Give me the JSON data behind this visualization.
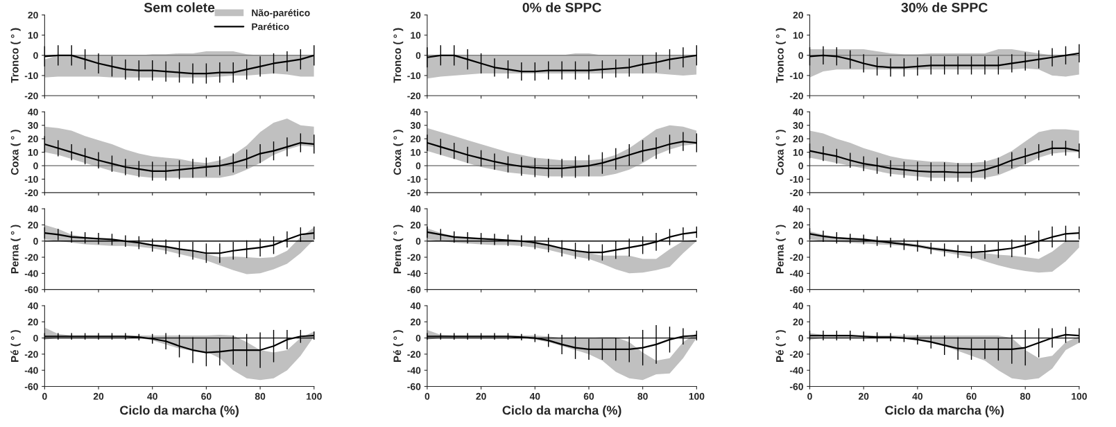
{
  "chart_data": [
    {
      "type": "line",
      "title": "Sem colete",
      "ylabel": "Tronco ( ° )",
      "x": [
        0,
        5,
        10,
        15,
        20,
        25,
        30,
        35,
        40,
        45,
        50,
        55,
        60,
        65,
        70,
        75,
        80,
        85,
        90,
        95,
        100
      ],
      "xlim": [
        0,
        100
      ],
      "xticks": [
        0,
        20,
        40,
        60,
        80,
        100
      ],
      "ylim": [
        -20,
        20
      ],
      "yticks": [
        -20,
        -10,
        0,
        10,
        20
      ],
      "tick_labels": "y",
      "legend": "top right",
      "ref_lines": [
        {
          "axis": "y",
          "value": 0,
          "color": "#808080"
        }
      ],
      "series": [
        {
          "name": "Não-parético",
          "type": "area",
          "color": "#c0c0c0",
          "values": [
            null,
            null,
            null,
            null,
            null,
            null,
            null,
            null,
            null,
            null,
            null,
            null,
            null,
            null,
            null,
            null,
            null,
            null,
            null,
            null,
            null
          ],
          "lower": [
            -11,
            -10.5,
            -10.5,
            -10.5,
            -10.5,
            -11,
            -11,
            -11,
            -11,
            -11,
            -11,
            -11,
            -11,
            -10.5,
            -10,
            -10,
            -9.5,
            -9,
            -9.5,
            -10.5,
            -10.5
          ],
          "upper": [
            -2,
            0,
            0,
            0,
            0,
            0,
            0,
            0,
            0.5,
            0.5,
            1,
            1,
            2,
            2,
            2,
            0.5,
            0,
            0,
            0,
            0,
            0
          ]
        },
        {
          "name": "Parético",
          "color": "#000000",
          "values": [
            -0.5,
            0,
            0,
            -2,
            -4,
            -5.5,
            -7,
            -7.5,
            -7.5,
            -8,
            -8.5,
            -9,
            -9,
            -8.5,
            -8.5,
            -7,
            -5.5,
            -4,
            -3,
            -2,
            0
          ],
          "errors": [
            5,
            5,
            5,
            5,
            5,
            5,
            5,
            5,
            5,
            5,
            5,
            5,
            5,
            5,
            5,
            5,
            5,
            5,
            5,
            5,
            5
          ]
        }
      ]
    },
    {
      "type": "line",
      "title": "0% de SPPC",
      "ylabel": "Tronco ( ° )",
      "x": [
        0,
        5,
        10,
        15,
        20,
        25,
        30,
        35,
        40,
        45,
        50,
        55,
        60,
        65,
        70,
        75,
        80,
        85,
        90,
        95,
        100
      ],
      "xlim": [
        0,
        100
      ],
      "xticks": [
        0,
        20,
        40,
        60,
        80,
        100
      ],
      "ylim": [
        -20,
        20
      ],
      "yticks": [
        -20,
        -10,
        0,
        10,
        20
      ],
      "tick_labels": "y",
      "ref_lines": [
        {
          "axis": "y",
          "value": 0,
          "color": "#808080"
        }
      ],
      "series": [
        {
          "type": "area",
          "color": "#c0c0c0",
          "values": [
            null,
            null,
            null,
            null,
            null,
            null,
            null,
            null,
            null,
            null,
            null,
            null,
            null,
            null,
            null,
            null,
            null,
            null,
            null,
            null,
            null
          ],
          "lower": [
            -11.5,
            -10.5,
            -10,
            -9.5,
            -9,
            -9,
            -9,
            -9,
            -9,
            -9,
            -9,
            -9,
            -9,
            -9,
            -9,
            -9,
            -9,
            -9,
            -9.5,
            -10,
            -9.5
          ],
          "upper": [
            0,
            0,
            0,
            0,
            0,
            0,
            0,
            0,
            0,
            0,
            0,
            1,
            1,
            0,
            0,
            0,
            0,
            0,
            0,
            0,
            0
          ]
        },
        {
          "color": "#000000",
          "values": [
            -1,
            0,
            0,
            -2,
            -4,
            -6,
            -7,
            -8,
            -8,
            -7.5,
            -7.5,
            -7.5,
            -7.5,
            -7,
            -6.5,
            -6,
            -4.5,
            -3.5,
            -2,
            -1,
            0
          ],
          "errors": [
            5,
            5,
            5,
            5,
            5,
            4.5,
            4.5,
            4.5,
            4.5,
            4.5,
            4.5,
            4.5,
            4.5,
            4.5,
            4.5,
            4.5,
            4.5,
            5,
            5,
            5,
            5
          ]
        }
      ]
    },
    {
      "type": "line",
      "title": "30% de SPPC",
      "ylabel": "Tronco ( ° )",
      "x": [
        0,
        5,
        10,
        15,
        20,
        25,
        30,
        35,
        40,
        45,
        50,
        55,
        60,
        65,
        70,
        75,
        80,
        85,
        90,
        95,
        100
      ],
      "xlim": [
        0,
        100
      ],
      "xticks": [
        0,
        20,
        40,
        60,
        80,
        100
      ],
      "ylim": [
        -20,
        20
      ],
      "yticks": [
        -20,
        -10,
        0,
        10,
        20
      ],
      "tick_labels": "y",
      "ref_lines": [
        {
          "axis": "y",
          "value": 0,
          "color": "#808080"
        }
      ],
      "series": [
        {
          "type": "area",
          "color": "#c0c0c0",
          "values": [
            null,
            null,
            null,
            null,
            null,
            null,
            null,
            null,
            null,
            null,
            null,
            null,
            null,
            null,
            null,
            null,
            null,
            null,
            null,
            null,
            null
          ],
          "lower": [
            -11,
            -8,
            -7,
            -7,
            -7,
            -7,
            -7,
            -7,
            -7,
            -7,
            -7,
            -7,
            -7,
            -7,
            -7,
            -7,
            -6.5,
            -7,
            -10,
            -10.5,
            -9.5
          ],
          "upper": [
            3,
            3,
            3,
            3,
            3,
            2,
            1,
            0.5,
            0.5,
            1,
            1,
            1,
            1,
            1,
            3,
            3,
            2,
            1,
            0,
            0,
            0
          ]
        },
        {
          "color": "#000000",
          "values": [
            -0.5,
            0,
            -0.5,
            -2,
            -4,
            -5.5,
            -6,
            -6,
            -5.5,
            -5,
            -5,
            -5,
            -5,
            -5,
            -5,
            -4,
            -3,
            -2,
            -1,
            0,
            1
          ],
          "errors": [
            4.5,
            4.5,
            4.5,
            4.5,
            4.5,
            4.5,
            4.5,
            4.5,
            4.5,
            4.5,
            4.5,
            4.5,
            4.5,
            4.5,
            4.5,
            4.5,
            4.5,
            4.5,
            4.5,
            4.5,
            4.5
          ]
        }
      ]
    },
    {
      "type": "line",
      "ylabel": "Coxa ( ° )",
      "x": [
        0,
        5,
        10,
        15,
        20,
        25,
        30,
        35,
        40,
        45,
        50,
        55,
        60,
        65,
        70,
        75,
        80,
        85,
        90,
        95,
        100
      ],
      "xlim": [
        0,
        100
      ],
      "xticks": [
        0,
        20,
        40,
        60,
        80,
        100
      ],
      "ylim": [
        -20,
        40
      ],
      "yticks": [
        -20,
        -10,
        0,
        10,
        20,
        30,
        40
      ],
      "tick_labels": "y",
      "ref_lines": [
        {
          "axis": "y",
          "value": 0,
          "color": "#808080"
        }
      ],
      "series": [
        {
          "type": "area",
          "color": "#c0c0c0",
          "values": [
            null,
            null,
            null,
            null,
            null,
            null,
            null,
            null,
            null,
            null,
            null,
            null,
            null,
            null,
            null,
            null,
            null,
            null,
            null,
            null,
            null
          ],
          "lower": [
            10,
            8,
            5,
            2,
            -1,
            -4,
            -6,
            -8,
            -9,
            -9,
            -9,
            -9,
            -9,
            -9,
            -7,
            -3,
            2,
            8,
            12,
            15,
            14
          ],
          "upper": [
            29,
            28,
            26,
            22,
            19,
            16,
            12,
            9,
            7,
            6,
            5,
            3,
            2,
            4,
            8,
            15,
            25,
            32,
            35,
            30,
            29
          ]
        },
        {
          "color": "#000000",
          "values": [
            16,
            13,
            10,
            7,
            4,
            1.5,
            -1,
            -2.5,
            -4,
            -4,
            -3,
            -2,
            -1,
            0,
            2,
            5,
            9,
            11,
            14,
            17,
            16
          ],
          "errors": [
            6,
            6,
            6,
            6,
            6,
            6,
            6,
            6,
            7,
            7,
            7,
            7,
            7,
            7,
            7,
            7,
            7,
            7,
            7,
            7,
            7
          ]
        }
      ]
    },
    {
      "type": "line",
      "ylabel": "Coxa ( ° )",
      "x": [
        0,
        5,
        10,
        15,
        20,
        25,
        30,
        35,
        40,
        45,
        50,
        55,
        60,
        65,
        70,
        75,
        80,
        85,
        90,
        95,
        100
      ],
      "xlim": [
        0,
        100
      ],
      "xticks": [
        0,
        20,
        40,
        60,
        80,
        100
      ],
      "ylim": [
        -20,
        40
      ],
      "yticks": [
        -20,
        -10,
        0,
        10,
        20,
        30,
        40
      ],
      "tick_labels": "y",
      "ref_lines": [
        {
          "axis": "y",
          "value": 0,
          "color": "#808080"
        }
      ],
      "series": [
        {
          "type": "area",
          "color": "#c0c0c0",
          "values": [
            null,
            null,
            null,
            null,
            null,
            null,
            null,
            null,
            null,
            null,
            null,
            null,
            null,
            null,
            null,
            null,
            null,
            null,
            null,
            null,
            null
          ],
          "lower": [
            11,
            8,
            5,
            2,
            -1,
            -3,
            -5,
            -6,
            -7,
            -8,
            -8,
            -8,
            -8,
            -8,
            -6,
            -3,
            2,
            8,
            12,
            15,
            16
          ],
          "upper": [
            28,
            25,
            22,
            19,
            16,
            13,
            10,
            8,
            6,
            5,
            4,
            4,
            4,
            5,
            8,
            13,
            20,
            27,
            30,
            29,
            26
          ]
        },
        {
          "color": "#000000",
          "values": [
            17,
            14,
            11,
            8,
            5.5,
            3,
            1,
            -0.5,
            -1.5,
            -2,
            -2,
            -1,
            0,
            2,
            5,
            8,
            11,
            13,
            16,
            18,
            17
          ],
          "errors": [
            6,
            6,
            6,
            6,
            6,
            6,
            6,
            7,
            7,
            7,
            7,
            8,
            8,
            8,
            8,
            8,
            8,
            8,
            7,
            7,
            7
          ]
        }
      ]
    },
    {
      "type": "line",
      "ylabel": "Coxa ( ° )",
      "x": [
        0,
        5,
        10,
        15,
        20,
        25,
        30,
        35,
        40,
        45,
        50,
        55,
        60,
        65,
        70,
        75,
        80,
        85,
        90,
        95,
        100
      ],
      "xlim": [
        0,
        100
      ],
      "xticks": [
        0,
        20,
        40,
        60,
        80,
        100
      ],
      "ylim": [
        -20,
        40
      ],
      "yticks": [
        -20,
        -10,
        0,
        10,
        20,
        30,
        40
      ],
      "tick_labels": "y",
      "ref_lines": [
        {
          "axis": "y",
          "value": 0,
          "color": "#808080"
        }
      ],
      "series": [
        {
          "type": "area",
          "color": "#c0c0c0",
          "values": [
            null,
            null,
            null,
            null,
            null,
            null,
            null,
            null,
            null,
            null,
            null,
            null,
            null,
            null,
            null,
            null,
            null,
            null,
            null,
            null,
            null
          ],
          "lower": [
            6,
            4,
            2,
            0,
            -2,
            -4,
            -6,
            -7,
            -8,
            -9,
            -9,
            -9,
            -9,
            -9,
            -7,
            -3,
            1,
            6,
            9,
            10,
            10
          ],
          "upper": [
            26,
            24,
            20,
            17,
            13,
            10,
            7,
            5,
            4,
            3,
            3,
            2,
            2,
            3,
            6,
            11,
            18,
            25,
            27,
            27,
            26
          ]
        },
        {
          "color": "#000000",
          "values": [
            11,
            9,
            7,
            4,
            1.5,
            0,
            -2,
            -3,
            -4,
            -4.5,
            -4.5,
            -5,
            -5,
            -3,
            0,
            4,
            7,
            10,
            13,
            13,
            11
          ],
          "errors": [
            5.5,
            5.5,
            5.5,
            5.5,
            5.5,
            6,
            6,
            6,
            7,
            7,
            7,
            7,
            7,
            7,
            6,
            6,
            6,
            6,
            5.5,
            5.5,
            5.5
          ]
        }
      ]
    },
    {
      "type": "line",
      "ylabel": "Perna ( ° )",
      "x": [
        0,
        5,
        10,
        15,
        20,
        25,
        30,
        35,
        40,
        45,
        50,
        55,
        60,
        65,
        70,
        75,
        80,
        85,
        90,
        95,
        100
      ],
      "xlim": [
        0,
        100
      ],
      "xticks": [
        0,
        20,
        40,
        60,
        80,
        100
      ],
      "ylim": [
        -60,
        40
      ],
      "yticks": [
        -60,
        -40,
        -20,
        0,
        20,
        40
      ],
      "tick_labels": "y",
      "ref_lines": [
        {
          "axis": "y",
          "value": 0,
          "color": "#000000"
        }
      ],
      "series": [
        {
          "type": "area",
          "color": "#c0c0c0",
          "values": [
            null,
            null,
            null,
            null,
            null,
            null,
            null,
            null,
            null,
            null,
            null,
            null,
            null,
            null,
            null,
            null,
            null,
            null,
            null,
            null,
            null
          ],
          "lower": [
            2,
            0,
            -2,
            -4,
            -5,
            -6,
            -6,
            -7,
            -9,
            -12,
            -16,
            -20,
            -24,
            -30,
            -36,
            -41,
            -40,
            -35,
            -28,
            -15,
            2
          ],
          "upper": [
            20,
            15,
            8,
            5,
            3,
            1,
            0,
            -2,
            -4,
            -7,
            -10,
            -13,
            -16,
            -20,
            -19,
            -20,
            -21,
            -20,
            -12,
            5,
            17
          ]
        },
        {
          "color": "#000000",
          "values": [
            10,
            8,
            5,
            4,
            3,
            2,
            0,
            -2,
            -5,
            -7,
            -10,
            -12,
            -15,
            -15,
            -12,
            -10,
            -8,
            -5,
            2,
            8,
            10
          ],
          "errors": [
            7,
            7,
            7,
            7,
            7,
            7,
            7,
            8,
            8,
            9,
            10,
            11,
            12,
            12,
            11,
            11,
            11,
            11,
            10,
            9,
            8
          ]
        }
      ]
    },
    {
      "type": "line",
      "ylabel": "Perna ( ° )",
      "x": [
        0,
        5,
        10,
        15,
        20,
        25,
        30,
        35,
        40,
        45,
        50,
        55,
        60,
        65,
        70,
        75,
        80,
        85,
        90,
        95,
        100
      ],
      "xlim": [
        0,
        100
      ],
      "xticks": [
        0,
        20,
        40,
        60,
        80,
        100
      ],
      "ylim": [
        -60,
        40
      ],
      "yticks": [
        -60,
        -40,
        -20,
        0,
        20,
        40
      ],
      "tick_labels": "y",
      "ref_lines": [
        {
          "axis": "y",
          "value": 0,
          "color": "#000000"
        }
      ],
      "series": [
        {
          "type": "area",
          "color": "#c0c0c0",
          "values": [
            null,
            null,
            null,
            null,
            null,
            null,
            null,
            null,
            null,
            null,
            null,
            null,
            null,
            null,
            null,
            null,
            null,
            null,
            null,
            null,
            null
          ],
          "lower": [
            2,
            0,
            -2,
            -3,
            -4,
            -5,
            -5,
            -6,
            -8,
            -11,
            -15,
            -19,
            -22,
            -28,
            -35,
            -40,
            -39,
            -36,
            -32,
            -15,
            0
          ],
          "upper": [
            16,
            10,
            6,
            4,
            2,
            1,
            0,
            -1,
            -3,
            -6,
            -9,
            -12,
            -15,
            -18,
            -18,
            -18,
            -22,
            -22,
            -10,
            0,
            2
          ]
        },
        {
          "color": "#000000",
          "values": [
            11,
            8,
            5,
            4,
            3,
            2,
            1,
            0,
            -2,
            -5,
            -9,
            -12,
            -14,
            -14,
            -11,
            -8,
            -5,
            -1,
            5,
            9,
            11
          ],
          "errors": [
            7,
            7,
            7,
            7,
            7,
            7,
            7,
            7,
            8,
            9,
            10,
            10,
            10,
            10,
            11,
            11,
            11,
            11,
            10,
            8,
            7
          ]
        }
      ]
    },
    {
      "type": "line",
      "ylabel": "Perna ( ° )",
      "x": [
        0,
        5,
        10,
        15,
        20,
        25,
        30,
        35,
        40,
        45,
        50,
        55,
        60,
        65,
        70,
        75,
        80,
        85,
        90,
        95,
        100
      ],
      "xlim": [
        0,
        100
      ],
      "xticks": [
        0,
        20,
        40,
        60,
        80,
        100
      ],
      "ylim": [
        -60,
        40
      ],
      "yticks": [
        -60,
        -40,
        -20,
        0,
        20,
        40
      ],
      "tick_labels": "y",
      "ref_lines": [
        {
          "axis": "y",
          "value": 0,
          "color": "#000000"
        }
      ],
      "series": [
        {
          "type": "area",
          "color": "#c0c0c0",
          "values": [
            null,
            null,
            null,
            null,
            null,
            null,
            null,
            null,
            null,
            null,
            null,
            null,
            null,
            null,
            null,
            null,
            null,
            null,
            null,
            null,
            null
          ],
          "lower": [
            2,
            0,
            -1,
            -2,
            -3,
            -4,
            -5,
            -6,
            -8,
            -11,
            -14,
            -17,
            -20,
            -25,
            -30,
            -34,
            -37,
            -39,
            -38,
            -25,
            -8
          ],
          "upper": [
            12,
            8,
            5,
            4,
            3,
            2,
            0,
            -2,
            -4,
            -7,
            -9,
            -12,
            -14,
            -15,
            -17,
            -18,
            -20,
            -22,
            -13,
            0,
            0
          ]
        },
        {
          "color": "#000000",
          "values": [
            9,
            6,
            4,
            3,
            2,
            0,
            -2,
            -4,
            -6,
            -9,
            -11,
            -13,
            -14,
            -13,
            -11,
            -9,
            -5,
            0,
            5,
            9,
            10
          ],
          "errors": [
            7,
            7,
            7,
            6,
            6,
            6,
            6,
            7,
            7,
            7,
            8,
            8,
            8,
            9,
            10,
            11,
            12,
            13,
            13,
            10,
            8
          ]
        }
      ]
    },
    {
      "type": "line",
      "ylabel": "Pé ( ° )",
      "xlabel": "Ciclo da marcha (%)",
      "x": [
        0,
        5,
        10,
        15,
        20,
        25,
        30,
        35,
        40,
        45,
        50,
        55,
        60,
        65,
        70,
        75,
        80,
        85,
        90,
        95,
        100
      ],
      "xlim": [
        0,
        100
      ],
      "xticks": [
        0,
        20,
        40,
        60,
        80,
        100
      ],
      "ylim": [
        -60,
        40
      ],
      "yticks": [
        -60,
        -40,
        -20,
        0,
        20,
        40
      ],
      "ref_lines": [
        {
          "axis": "y",
          "value": 0,
          "color": "#000000"
        }
      ],
      "series": [
        {
          "type": "area",
          "color": "#c0c0c0",
          "values": [
            null,
            null,
            null,
            null,
            null,
            null,
            null,
            null,
            null,
            null,
            null,
            null,
            null,
            null,
            null,
            null,
            null,
            null,
            null,
            null,
            null
          ],
          "lower": [
            -2,
            0,
            0,
            0,
            0,
            0,
            0,
            0,
            -3,
            -8,
            -13,
            -16,
            -17,
            -25,
            -40,
            -50,
            -52,
            -50,
            -40,
            -22,
            2
          ],
          "upper": [
            13,
            5,
            3,
            3,
            3,
            3,
            3,
            3,
            3,
            3,
            3,
            3,
            3,
            4,
            3,
            -5,
            -15,
            -18,
            -15,
            0,
            8
          ]
        },
        {
          "color": "#000000",
          "values": [
            2,
            2,
            2,
            2,
            2,
            2,
            2,
            1,
            -1,
            -4,
            -10,
            -15,
            -18,
            -17,
            -15,
            -15,
            -15,
            -10,
            -2,
            2,
            3
          ],
          "errors": [
            4,
            4,
            4,
            4,
            4,
            4,
            4,
            4,
            6,
            10,
            14,
            16,
            17,
            17,
            18,
            20,
            22,
            20,
            12,
            8,
            5
          ]
        }
      ]
    },
    {
      "type": "line",
      "ylabel": "Pé ( ° )",
      "xlabel": "Ciclo da marcha (%)",
      "x": [
        0,
        5,
        10,
        15,
        20,
        25,
        30,
        35,
        40,
        45,
        50,
        55,
        60,
        65,
        70,
        75,
        80,
        85,
        90,
        95,
        100
      ],
      "xlim": [
        0,
        100
      ],
      "xticks": [
        0,
        20,
        40,
        60,
        80,
        100
      ],
      "ylim": [
        -60,
        40
      ],
      "yticks": [
        -60,
        -40,
        -20,
        0,
        20,
        40
      ],
      "ref_lines": [
        {
          "axis": "y",
          "value": 0,
          "color": "#000000"
        }
      ],
      "series": [
        {
          "type": "area",
          "color": "#c0c0c0",
          "values": [
            null,
            null,
            null,
            null,
            null,
            null,
            null,
            null,
            null,
            null,
            null,
            null,
            null,
            null,
            null,
            null,
            null,
            null,
            null,
            null,
            null
          ],
          "lower": [
            -2,
            0,
            0,
            0,
            0,
            0,
            0,
            0,
            -2,
            -5,
            -10,
            -15,
            -20,
            -28,
            -42,
            -50,
            -52,
            -45,
            -44,
            -25,
            0
          ],
          "upper": [
            10,
            4,
            3,
            3,
            3,
            3,
            3,
            3,
            3,
            2,
            0,
            0,
            0,
            1,
            1,
            -5,
            -18,
            -28,
            -25,
            -5,
            6
          ]
        },
        {
          "color": "#000000",
          "values": [
            2,
            2,
            2,
            2,
            2,
            2,
            2,
            1,
            0,
            -3,
            -8,
            -12,
            -14,
            -14,
            -14,
            -14,
            -12,
            -8,
            -2,
            2,
            3
          ],
          "errors": [
            4,
            4,
            4,
            4,
            4,
            4,
            4,
            4,
            5,
            8,
            12,
            14,
            13,
            13,
            14,
            16,
            22,
            24,
            16,
            10,
            6
          ]
        }
      ]
    },
    {
      "type": "line",
      "ylabel": "Pé ( ° )",
      "xlabel": "Ciclo da marcha (%)",
      "x": [
        0,
        5,
        10,
        15,
        20,
        25,
        30,
        35,
        40,
        45,
        50,
        55,
        60,
        65,
        70,
        75,
        80,
        85,
        90,
        95,
        100
      ],
      "xlim": [
        0,
        100
      ],
      "xticks": [
        0,
        20,
        40,
        60,
        80,
        100
      ],
      "ylim": [
        -60,
        40
      ],
      "yticks": [
        -60,
        -40,
        -20,
        0,
        20,
        40
      ],
      "ref_lines": [
        {
          "axis": "y",
          "value": 0,
          "color": "#000000"
        }
      ],
      "series": [
        {
          "type": "area",
          "color": "#c0c0c0",
          "values": [
            null,
            null,
            null,
            null,
            null,
            null,
            null,
            null,
            null,
            null,
            null,
            null,
            null,
            null,
            null,
            null,
            null,
            null,
            null,
            null,
            null
          ],
          "lower": [
            -2,
            0,
            0,
            0,
            0,
            0,
            0,
            0,
            -2,
            -5,
            -10,
            -16,
            -22,
            -28,
            -40,
            -50,
            -52,
            -50,
            -38,
            -15,
            -6
          ],
          "upper": [
            6,
            4,
            3,
            3,
            3,
            3,
            3,
            3,
            3,
            3,
            3,
            3,
            3,
            3,
            3,
            0,
            -15,
            -25,
            -22,
            -5,
            2
          ]
        },
        {
          "color": "#000000",
          "values": [
            3,
            3,
            3,
            3,
            2,
            1,
            1,
            0,
            -2,
            -5,
            -9,
            -13,
            -14,
            -14,
            -14,
            -14,
            -12,
            -6,
            0,
            4,
            3
          ],
          "errors": [
            6,
            6,
            6,
            6,
            6,
            6,
            5,
            5,
            6,
            8,
            12,
            14,
            13,
            12,
            14,
            18,
            22,
            18,
            12,
            10,
            9
          ]
        }
      ]
    }
  ]
}
